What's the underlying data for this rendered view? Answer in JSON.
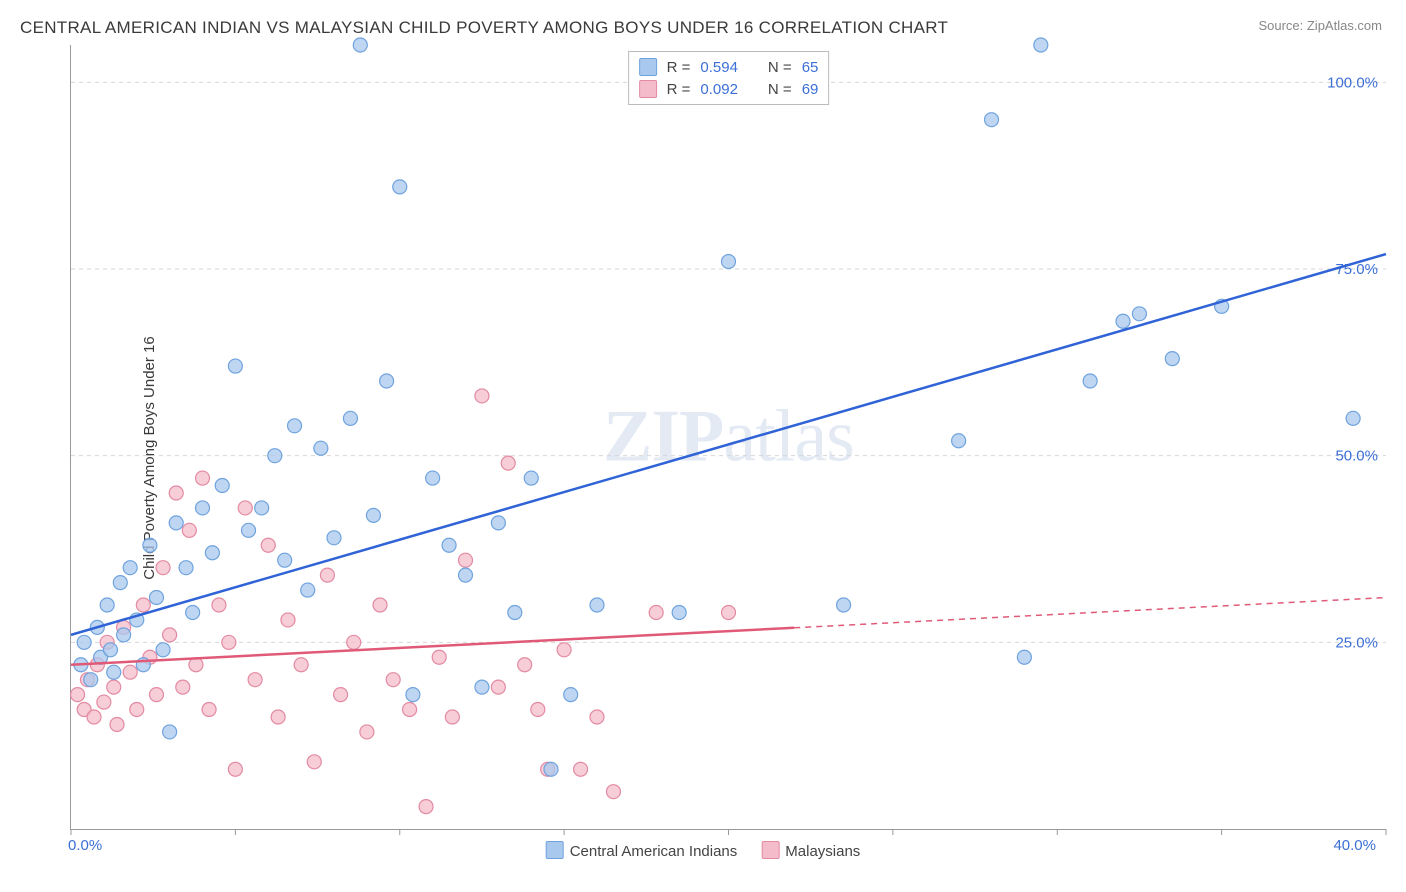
{
  "title": "CENTRAL AMERICAN INDIAN VS MALAYSIAN CHILD POVERTY AMONG BOYS UNDER 16 CORRELATION CHART",
  "source_label": "Source: ",
  "source_name": "ZipAtlas.com",
  "ylabel": "Child Poverty Among Boys Under 16",
  "watermark": "ZIPatlas",
  "chart": {
    "type": "scatter-with-trend",
    "xlim": [
      0,
      40
    ],
    "ylim": [
      0,
      105
    ],
    "xticks": [
      0,
      5,
      10,
      15,
      20,
      25,
      30,
      35,
      40
    ],
    "yticks": [
      25,
      50,
      75,
      100
    ],
    "x_axis_min_label": "0.0%",
    "x_axis_max_label": "40.0%",
    "y_tick_labels": [
      "25.0%",
      "50.0%",
      "75.0%",
      "100.0%"
    ],
    "grid_color": "#d6d6d6",
    "background": "#ffffff",
    "marker_radius": 7,
    "marker_stroke_width": 1.2,
    "trend_width": 2.5,
    "series": [
      {
        "name": "Central American Indians",
        "fill": "#a9c8ed",
        "stroke": "#6fa3de",
        "trend_color": "#2f63d6",
        "trend": {
          "x1": 0,
          "y1": 26,
          "x2": 40,
          "y2": 77,
          "solid_until": 40
        },
        "R": "0.594",
        "N": "65",
        "points": [
          [
            0.3,
            22
          ],
          [
            0.4,
            25
          ],
          [
            0.6,
            20
          ],
          [
            0.8,
            27
          ],
          [
            0.9,
            23
          ],
          [
            1.1,
            30
          ],
          [
            1.2,
            24
          ],
          [
            1.3,
            21
          ],
          [
            1.5,
            33
          ],
          [
            1.6,
            26
          ],
          [
            1.8,
            35
          ],
          [
            2.0,
            28
          ],
          [
            2.2,
            22
          ],
          [
            2.4,
            38
          ],
          [
            2.6,
            31
          ],
          [
            2.8,
            24
          ],
          [
            3.0,
            13
          ],
          [
            3.2,
            41
          ],
          [
            3.5,
            35
          ],
          [
            3.7,
            29
          ],
          [
            4.0,
            43
          ],
          [
            4.3,
            37
          ],
          [
            4.6,
            46
          ],
          [
            5.0,
            62
          ],
          [
            5.4,
            40
          ],
          [
            5.8,
            43
          ],
          [
            6.2,
            50
          ],
          [
            6.5,
            36
          ],
          [
            6.8,
            54
          ],
          [
            7.2,
            32
          ],
          [
            7.6,
            51
          ],
          [
            8.0,
            39
          ],
          [
            8.5,
            55
          ],
          [
            8.8,
            105
          ],
          [
            9.2,
            42
          ],
          [
            9.6,
            60
          ],
          [
            10.0,
            86
          ],
          [
            10.4,
            18
          ],
          [
            11.0,
            47
          ],
          [
            11.5,
            38
          ],
          [
            12.0,
            34
          ],
          [
            12.5,
            19
          ],
          [
            13.0,
            41
          ],
          [
            13.5,
            29
          ],
          [
            14.0,
            47
          ],
          [
            14.6,
            8
          ],
          [
            15.2,
            18
          ],
          [
            16.0,
            30
          ],
          [
            18.5,
            29
          ],
          [
            20.0,
            76
          ],
          [
            23.5,
            30
          ],
          [
            27.0,
            52
          ],
          [
            28.0,
            95
          ],
          [
            29.0,
            23
          ],
          [
            29.5,
            105
          ],
          [
            31.0,
            60
          ],
          [
            32.0,
            68
          ],
          [
            32.5,
            69
          ],
          [
            33.5,
            63
          ],
          [
            35.0,
            70
          ],
          [
            39.0,
            55
          ]
        ]
      },
      {
        "name": "Malaysians",
        "fill": "#f4bccb",
        "stroke": "#e38aa2",
        "trend_color": "#e05a78",
        "trend": {
          "x1": 0,
          "y1": 22,
          "x2": 40,
          "y2": 31,
          "solid_until": 22
        },
        "R": "0.092",
        "N": "69",
        "points": [
          [
            0.2,
            18
          ],
          [
            0.4,
            16
          ],
          [
            0.5,
            20
          ],
          [
            0.7,
            15
          ],
          [
            0.8,
            22
          ],
          [
            1.0,
            17
          ],
          [
            1.1,
            25
          ],
          [
            1.3,
            19
          ],
          [
            1.4,
            14
          ],
          [
            1.6,
            27
          ],
          [
            1.8,
            21
          ],
          [
            2.0,
            16
          ],
          [
            2.2,
            30
          ],
          [
            2.4,
            23
          ],
          [
            2.6,
            18
          ],
          [
            2.8,
            35
          ],
          [
            3.0,
            26
          ],
          [
            3.2,
            45
          ],
          [
            3.4,
            19
          ],
          [
            3.6,
            40
          ],
          [
            3.8,
            22
          ],
          [
            4.0,
            47
          ],
          [
            4.2,
            16
          ],
          [
            4.5,
            30
          ],
          [
            4.8,
            25
          ],
          [
            5.0,
            8
          ],
          [
            5.3,
            43
          ],
          [
            5.6,
            20
          ],
          [
            6.0,
            38
          ],
          [
            6.3,
            15
          ],
          [
            6.6,
            28
          ],
          [
            7.0,
            22
          ],
          [
            7.4,
            9
          ],
          [
            7.8,
            34
          ],
          [
            8.2,
            18
          ],
          [
            8.6,
            25
          ],
          [
            9.0,
            13
          ],
          [
            9.4,
            30
          ],
          [
            9.8,
            20
          ],
          [
            10.3,
            16
          ],
          [
            10.8,
            3
          ],
          [
            11.2,
            23
          ],
          [
            11.6,
            15
          ],
          [
            12.0,
            36
          ],
          [
            12.5,
            58
          ],
          [
            13.0,
            19
          ],
          [
            13.3,
            49
          ],
          [
            13.8,
            22
          ],
          [
            14.2,
            16
          ],
          [
            14.5,
            8
          ],
          [
            15.0,
            24
          ],
          [
            15.5,
            8
          ],
          [
            16.0,
            15
          ],
          [
            16.5,
            5
          ],
          [
            17.8,
            29
          ],
          [
            20.0,
            29
          ]
        ]
      }
    ],
    "legend": {
      "series1_label": "Central American Indians",
      "series2_label": "Malaysians"
    },
    "stats_box": {
      "r_label": "R =",
      "n_label": "N ="
    }
  }
}
